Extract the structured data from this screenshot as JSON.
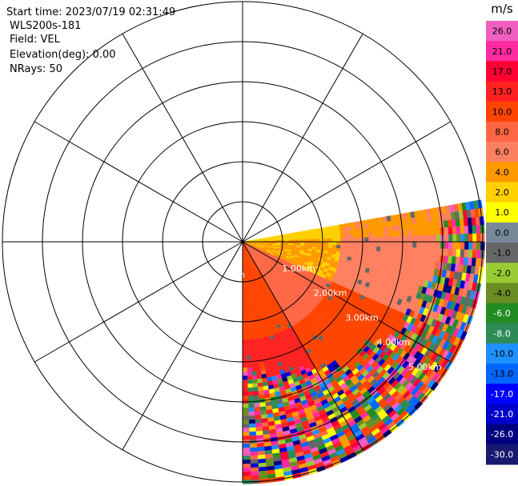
{
  "header": {
    "start_time": "Start time: 2023/07/19 02:31:49",
    "instrument": "WLS200s-181",
    "field": "Field: VEL",
    "elevation": "Elevation(deg): 0.00",
    "nrays": "NRays: 50"
  },
  "chart_data": {
    "type": "heatmap",
    "subtype": "polar-ppi-sector",
    "field": "VEL",
    "units": "m/s",
    "sector_azimuth_deg": [
      80,
      180
    ],
    "range_rings_km": [
      "1.00km",
      "2.00km",
      "3.00km",
      "4.00km",
      "5.00km"
    ],
    "range_ring_first_partial": "n",
    "max_range_km": 6.0,
    "range_gate_km": 0.1,
    "spoke_angles_deg": [
      0,
      30,
      60,
      90,
      120,
      150,
      180,
      210,
      240,
      270,
      300,
      330
    ],
    "grid": true,
    "near_field_pattern": [
      {
        "azimuth_from": 80,
        "azimuth_to": 88,
        "velocity_ms": 3.0
      },
      {
        "azimuth_from": 88,
        "azimuth_to": 115,
        "velocity_ms": 4.5
      },
      {
        "azimuth_from": 115,
        "azimuth_to": 150,
        "velocity_ms": 9.0
      },
      {
        "azimuth_from": 150,
        "azimuth_to": 180,
        "velocity_ms": 12.0
      }
    ],
    "colorbar": {
      "title": "m/s",
      "min": -30.0,
      "max": 30.0,
      "tick_labels": [
        "26.0",
        "21.0",
        "17.0",
        "13.0",
        "10.0",
        "8.0",
        "6.0",
        "4.0",
        "2.0",
        "1.0",
        "0.0",
        "-1.0",
        "-2.0",
        "-4.0",
        "-6.0",
        "-8.0",
        "-10.0",
        "-13.0",
        "-17.0",
        "-21.0",
        "-26.0",
        "-30.0"
      ],
      "bins": [
        {
          "lower": 26.0,
          "upper": 30.0,
          "color": "#f05fc0"
        },
        {
          "lower": 21.0,
          "upper": 26.0,
          "color": "#ff2aa0"
        },
        {
          "lower": 17.0,
          "upper": 21.0,
          "color": "#ff0033"
        },
        {
          "lower": 13.0,
          "upper": 17.0,
          "color": "#ff2222"
        },
        {
          "lower": 10.0,
          "upper": 13.0,
          "color": "#ff4400"
        },
        {
          "lower": 8.0,
          "upper": 10.0,
          "color": "#ff6644"
        },
        {
          "lower": 6.0,
          "upper": 8.0,
          "color": "#ff8060"
        },
        {
          "lower": 4.0,
          "upper": 6.0,
          "color": "#ff9900"
        },
        {
          "lower": 2.0,
          "upper": 4.0,
          "color": "#ffd000"
        },
        {
          "lower": 1.0,
          "upper": 2.0,
          "color": "#ffff00"
        },
        {
          "lower": 0.0,
          "upper": 1.0,
          "color": "#778899"
        },
        {
          "lower": -1.0,
          "upper": 0.0,
          "color": "#666666"
        },
        {
          "lower": -2.0,
          "upper": -1.0,
          "color": "#99cc33"
        },
        {
          "lower": -4.0,
          "upper": -2.0,
          "color": "#6b8e23"
        },
        {
          "lower": -6.0,
          "upper": -4.0,
          "color": "#228b22"
        },
        {
          "lower": -8.0,
          "upper": -6.0,
          "color": "#2e8b57"
        },
        {
          "lower": -10.0,
          "upper": -8.0,
          "color": "#1e90ff"
        },
        {
          "lower": -13.0,
          "upper": -10.0,
          "color": "#0066ff"
        },
        {
          "lower": -17.0,
          "upper": -13.0,
          "color": "#0000ff"
        },
        {
          "lower": -21.0,
          "upper": -17.0,
          "color": "#0000cd"
        },
        {
          "lower": -26.0,
          "upper": -21.0,
          "color": "#000080"
        },
        {
          "lower": -30.0,
          "upper": -26.0,
          "color": "#191970"
        }
      ],
      "text_colors": [
        "#000",
        "#000",
        "#000",
        "#000",
        "#000",
        "#000",
        "#000",
        "#000",
        "#000",
        "#000",
        "#000",
        "#000",
        "#000",
        "#000",
        "#fff",
        "#fff",
        "#000",
        "#000",
        "#fff",
        "#fff",
        "#fff",
        "#fff"
      ]
    },
    "noise_colors": [
      "#ff2aa0",
      "#ff0033",
      "#0000cd",
      "#ffff00",
      "#ff6644",
      "#1e90ff",
      "#228b22",
      "#f05fc0",
      "#ff9900",
      "#000080",
      "#99cc33",
      "#ff4400",
      "#666666",
      "#0066ff",
      "#6b8e23",
      "#2e8b57"
    ]
  }
}
